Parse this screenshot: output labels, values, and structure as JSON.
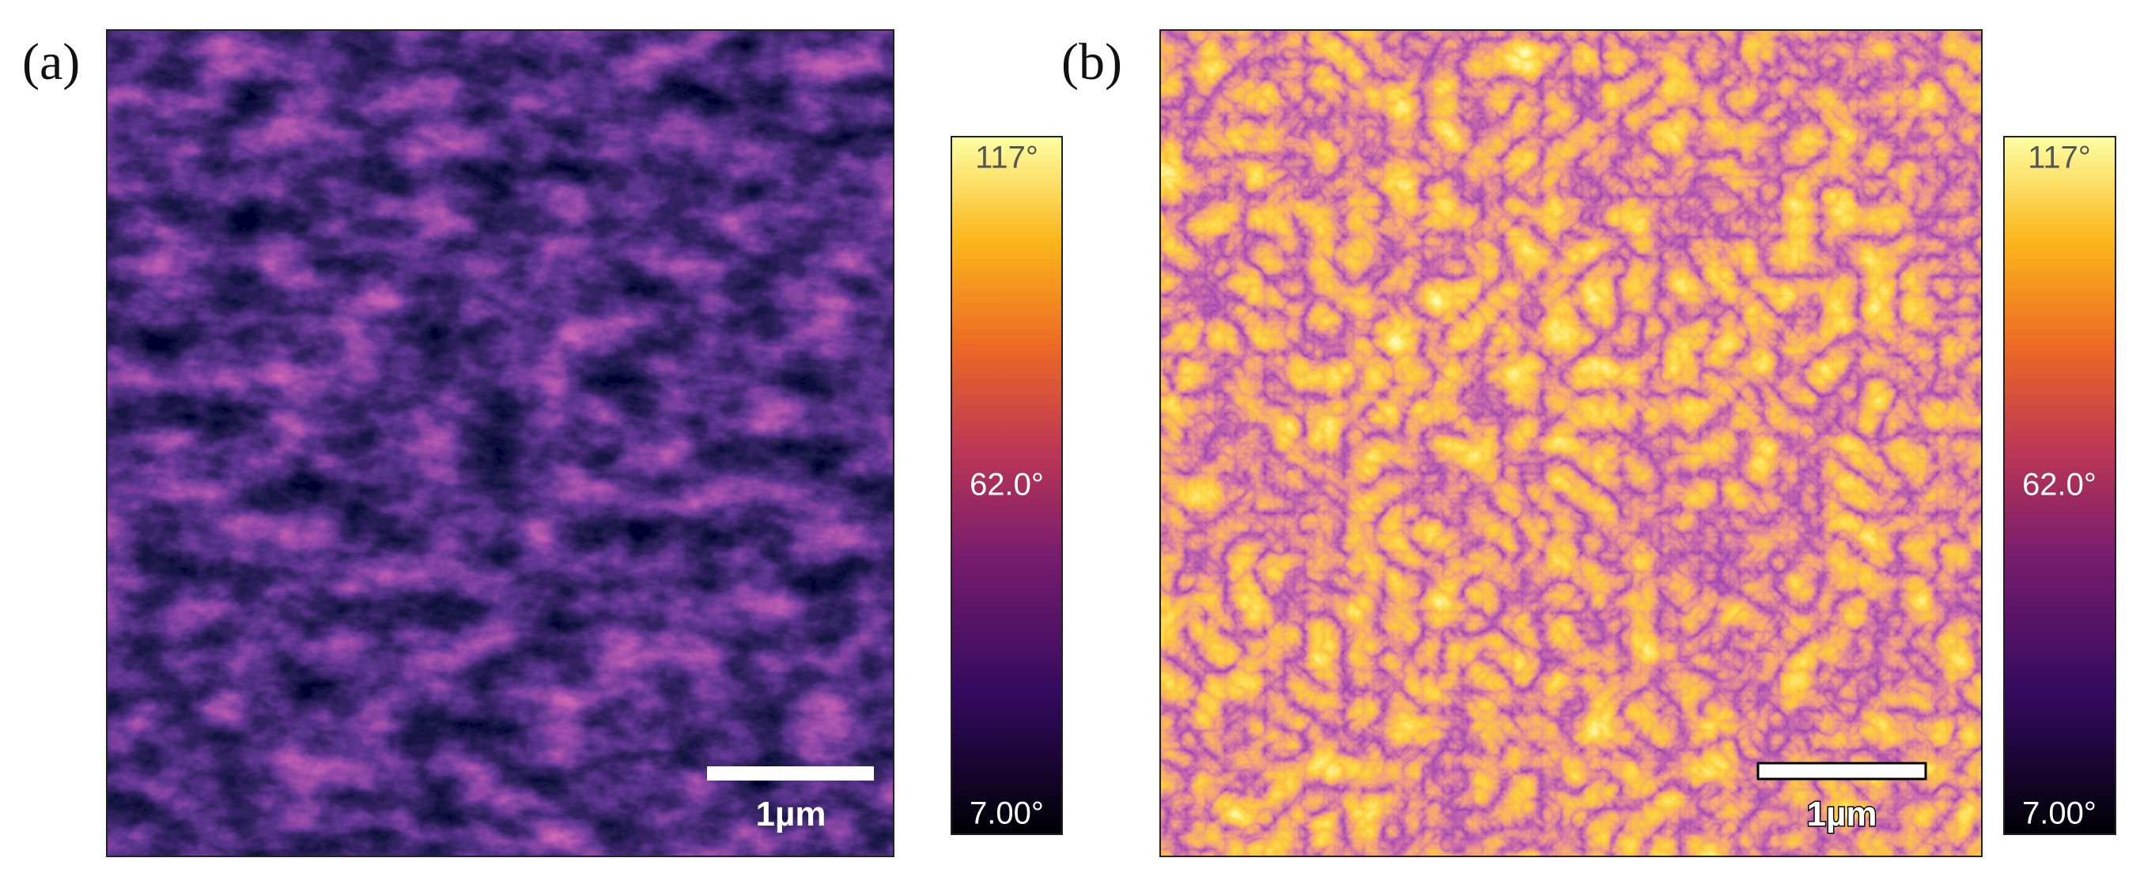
{
  "panels": [
    {
      "label": "(a)",
      "scale_bar": "1µm",
      "colorbar": {
        "max": "117°",
        "mid": "62.0°",
        "min": "7.00°"
      }
    },
    {
      "label": "(b)",
      "scale_bar": "1µm",
      "colorbar": {
        "max": "117°",
        "mid": "62.0°",
        "min": "7.00°"
      }
    }
  ]
}
